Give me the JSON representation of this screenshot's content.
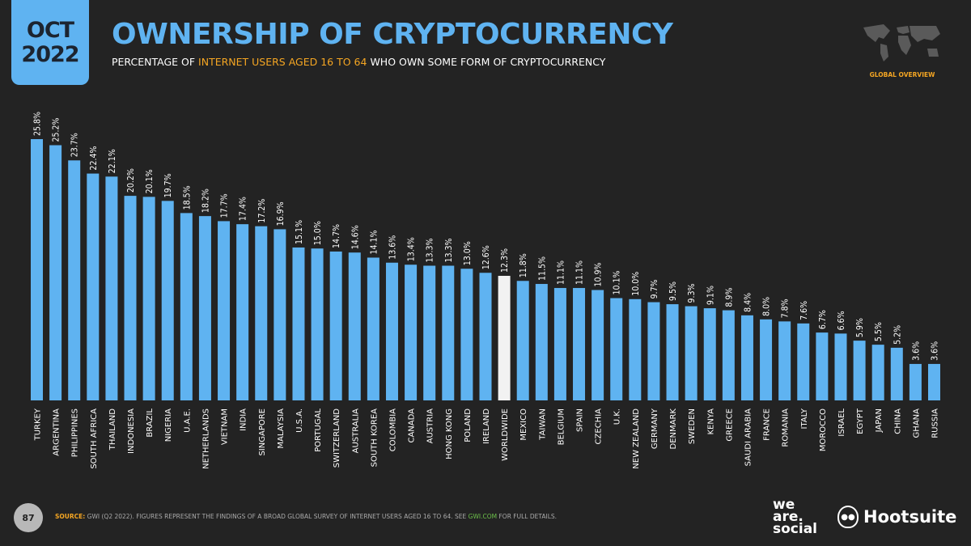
{
  "header": {
    "date_month": "OCT",
    "date_year": "2022",
    "title": "OWNERSHIP OF CRYPTOCURRENCY",
    "subtitle_pre": "PERCENTAGE OF ",
    "subtitle_highlight": "INTERNET USERS AGED 16 TO 64",
    "subtitle_post": " WHO OWN SOME FORM OF CRYPTOCURRENCY",
    "badge": "GLOBAL OVERVIEW"
  },
  "footer": {
    "page_number": "87",
    "source_label": "SOURCE:",
    "source_text": " GWI (Q2 2022). FIGURES REPRESENT THE FINDINGS OF A BROAD GLOBAL SURVEY OF INTERNET USERS AGED 16 TO 64. SEE ",
    "source_link": "GWI.COM",
    "source_end": " FOR FULL DETAILS.",
    "logo_we_are_social": "we are. social",
    "logo_hootsuite": "Hootsuite"
  },
  "colors": {
    "bar": "#5fb3f1",
    "highlight_bar": "#f2f2f2",
    "accent": "#f5a623",
    "background": "#232323"
  },
  "chart_data": {
    "type": "bar",
    "title": "",
    "xlabel": "",
    "ylabel": "",
    "ylim": [
      0,
      26
    ],
    "grid": false,
    "value_suffix": "%",
    "highlight": "WORLDWIDE",
    "categories": [
      "TURKEY",
      "ARGENTINA",
      "PHILIPPINES",
      "SOUTH AFRICA",
      "THAILAND",
      "INDONESIA",
      "BRAZIL",
      "NIGERIA",
      "U.A.E.",
      "NETHERLANDS",
      "VIETNAM",
      "INDIA",
      "SINGAPORE",
      "MALAYSIA",
      "U.S.A.",
      "PORTUGAL",
      "SWITZERLAND",
      "AUSTRALIA",
      "SOUTH KOREA",
      "COLOMBIA",
      "CANADA",
      "AUSTRIA",
      "HONG KONG",
      "POLAND",
      "IRELAND",
      "WORLDWIDE",
      "MEXICO",
      "TAIWAN",
      "BELGIUM",
      "SPAIN",
      "CZECHIA",
      "U.K.",
      "NEW ZEALAND",
      "GERMANY",
      "DENMARK",
      "SWEDEN",
      "KENYA",
      "GREECE",
      "SAUDI ARABIA",
      "FRANCE",
      "ROMANIA",
      "ITALY",
      "MOROCCO",
      "ISRAEL",
      "EGYPT",
      "JAPAN",
      "CHINA",
      "GHANA",
      "RUSSIA"
    ],
    "values": [
      25.8,
      25.2,
      23.7,
      22.4,
      22.1,
      20.2,
      20.1,
      19.7,
      18.5,
      18.2,
      17.7,
      17.4,
      17.2,
      16.9,
      15.1,
      15.0,
      14.7,
      14.6,
      14.1,
      13.6,
      13.4,
      13.3,
      13.3,
      13.0,
      12.6,
      12.3,
      11.8,
      11.5,
      11.1,
      11.1,
      10.9,
      10.1,
      10.0,
      9.7,
      9.5,
      9.3,
      9.1,
      8.9,
      8.4,
      8.0,
      7.8,
      7.6,
      6.7,
      6.6,
      5.9,
      5.5,
      5.2,
      3.6,
      3.6
    ]
  }
}
